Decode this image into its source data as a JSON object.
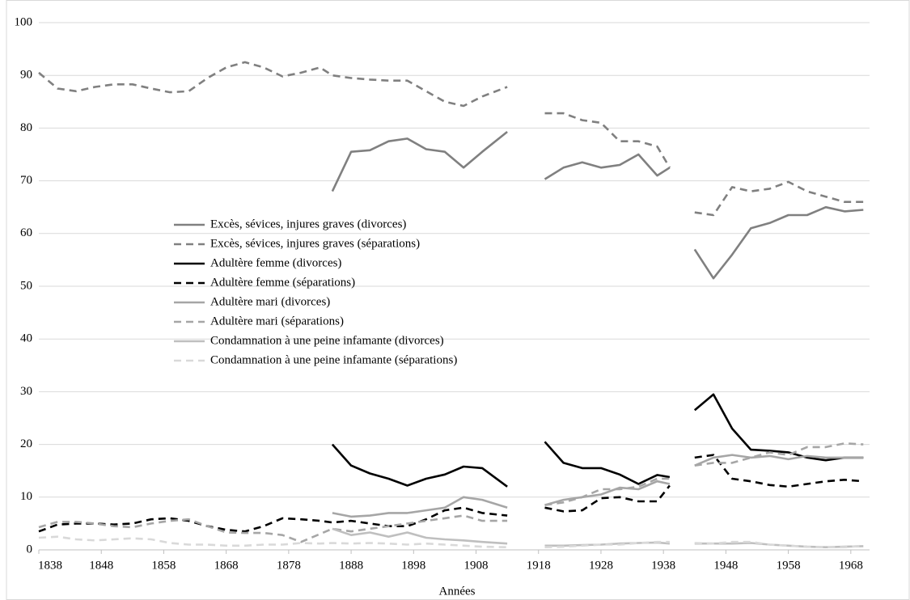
{
  "chart_data": {
    "type": "line",
    "x_label": "Années",
    "x": [
      1838,
      1841,
      1844,
      1847,
      1850,
      1853,
      1856,
      1859,
      1862,
      1865,
      1868,
      1871,
      1874,
      1877,
      1880,
      1883,
      1885,
      1888,
      1891,
      1894,
      1897,
      1900,
      1903,
      1906,
      1909,
      1913,
      1916,
      1919,
      1922,
      1925,
      1928,
      1931,
      1934,
      1937,
      1939,
      1941,
      1943,
      1946,
      1949,
      1952,
      1955,
      1958,
      1961,
      1964,
      1967,
      1970
    ],
    "xlim": [
      1838,
      1971
    ],
    "xticks": [
      1838,
      1848,
      1858,
      1868,
      1878,
      1888,
      1898,
      1908,
      1918,
      1928,
      1938,
      1948,
      1958,
      1968
    ],
    "ylim": [
      0,
      100
    ],
    "yticks": [
      0,
      10,
      20,
      30,
      40,
      50,
      60,
      70,
      80,
      90,
      100
    ],
    "grid": true,
    "legend": "center-left",
    "series": [
      {
        "name": "Excès, sévices, injures graves (divorces)",
        "color": "#808080",
        "dashed": false,
        "values": [
          null,
          null,
          null,
          null,
          null,
          null,
          null,
          null,
          null,
          null,
          null,
          null,
          null,
          null,
          null,
          null,
          68,
          75.5,
          75.8,
          77.5,
          78,
          76,
          75.5,
          72.5,
          75.5,
          79.3,
          null,
          70.3,
          72.5,
          73.5,
          72.5,
          73,
          75,
          71,
          72.5,
          null,
          57,
          51.5,
          56,
          61,
          62,
          63.5,
          63.5,
          65,
          64.2,
          64.5
        ]
      },
      {
        "name": "Excès, sévices, injures graves (séparations)",
        "color": "#808080",
        "dashed": true,
        "values": [
          90.5,
          87.5,
          87,
          87.8,
          88.3,
          88.3,
          87.5,
          86.8,
          87,
          89.5,
          91.5,
          92.5,
          91.5,
          89.8,
          90.5,
          91.5,
          90,
          89.5,
          89.2,
          89,
          89,
          87,
          85,
          84.2,
          86,
          87.8,
          null,
          82.8,
          82.8,
          81.5,
          81,
          77.5,
          77.5,
          76.5,
          72.5,
          null,
          64,
          63.5,
          68.8,
          68,
          68.5,
          69.8,
          68,
          67,
          66,
          66
        ]
      },
      {
        "name": "Adultère femme (divorces)",
        "color": "#000000",
        "dashed": false,
        "values": [
          null,
          null,
          null,
          null,
          null,
          null,
          null,
          null,
          null,
          null,
          null,
          null,
          null,
          null,
          null,
          null,
          20,
          16,
          14.5,
          13.5,
          12.2,
          13.5,
          14.3,
          15.8,
          15.5,
          12,
          null,
          20.5,
          16.5,
          15.5,
          15.5,
          14.3,
          12.5,
          14.2,
          13.8,
          null,
          26.5,
          29.5,
          23,
          19,
          18.8,
          18.5,
          17.5,
          17,
          17.5,
          17.5
        ]
      },
      {
        "name": "Adultère femme (séparations)",
        "color": "#000000",
        "dashed": true,
        "values": [
          3.5,
          4.8,
          5,
          5,
          4.8,
          5,
          5.8,
          6,
          5.5,
          4.5,
          3.8,
          3.5,
          4.5,
          6,
          5.8,
          5.5,
          5.2,
          5.5,
          5,
          4.5,
          4.5,
          5.8,
          7.5,
          8,
          7,
          6.5,
          null,
          8,
          7.3,
          7.5,
          9.8,
          10,
          9.2,
          9.2,
          12.2,
          null,
          17.5,
          18,
          13.5,
          13,
          12.3,
          12,
          12.5,
          13,
          13.3,
          13
        ]
      },
      {
        "name": "Adultère mari (divorces)",
        "color": "#a6a6a6",
        "dashed": false,
        "values": [
          null,
          null,
          null,
          null,
          null,
          null,
          null,
          null,
          null,
          null,
          null,
          null,
          null,
          null,
          null,
          null,
          7,
          6.3,
          6.5,
          7,
          7,
          7.5,
          8,
          10,
          9.5,
          8,
          null,
          8.5,
          9.5,
          10,
          10.5,
          11.8,
          11.5,
          13,
          12.5,
          null,
          16,
          17.5,
          18,
          17.5,
          17.8,
          17.2,
          17.8,
          17.5,
          17.5,
          17.5
        ]
      },
      {
        "name": "Adultère mari (séparations)",
        "color": "#a6a6a6",
        "dashed": true,
        "values": [
          4.3,
          5.3,
          5.3,
          5,
          4.5,
          4.3,
          5,
          5.5,
          5.8,
          4.5,
          3.3,
          3.2,
          3.2,
          2.8,
          1.5,
          3,
          4,
          3.5,
          4,
          4.5,
          5,
          5.5,
          6,
          6.5,
          5.5,
          5.5,
          null,
          8.5,
          9,
          10,
          11.5,
          11.5,
          12,
          13.5,
          13.5,
          null,
          16,
          16.5,
          16.5,
          17.5,
          18.5,
          18,
          19.5,
          19.5,
          20.2,
          20
        ]
      },
      {
        "name": "Condamnation à une peine infamante (divorces)",
        "color": "#bfbfbf",
        "dashed": false,
        "values": [
          null,
          null,
          null,
          null,
          null,
          null,
          null,
          null,
          null,
          null,
          null,
          null,
          null,
          null,
          null,
          null,
          4,
          2.8,
          3.3,
          2.5,
          3.3,
          2.3,
          2,
          1.8,
          1.5,
          1.2,
          null,
          0.8,
          0.8,
          0.9,
          1,
          1.2,
          1.3,
          1.4,
          1.2,
          null,
          1.2,
          1.2,
          1.2,
          1.3,
          1,
          0.8,
          0.6,
          0.5,
          0.6,
          0.7
        ]
      },
      {
        "name": "Condamnation à une peine infamante (séparations)",
        "color": "#d9d9d9",
        "dashed": true,
        "values": [
          2.3,
          2.5,
          2,
          1.8,
          2,
          2.2,
          2,
          1.3,
          1,
          1,
          0.8,
          0.8,
          1,
          1,
          1.3,
          1.2,
          1.3,
          1.2,
          1.3,
          1.2,
          1,
          1.2,
          1,
          0.8,
          0.6,
          0.5,
          null,
          0.5,
          0.6,
          0.8,
          1,
          1,
          1.3,
          1.5,
          1.5,
          null,
          1.3,
          1.2,
          1.5,
          1.5,
          1,
          0.8,
          0.6,
          0.5,
          0.5,
          0.8
        ]
      }
    ]
  }
}
